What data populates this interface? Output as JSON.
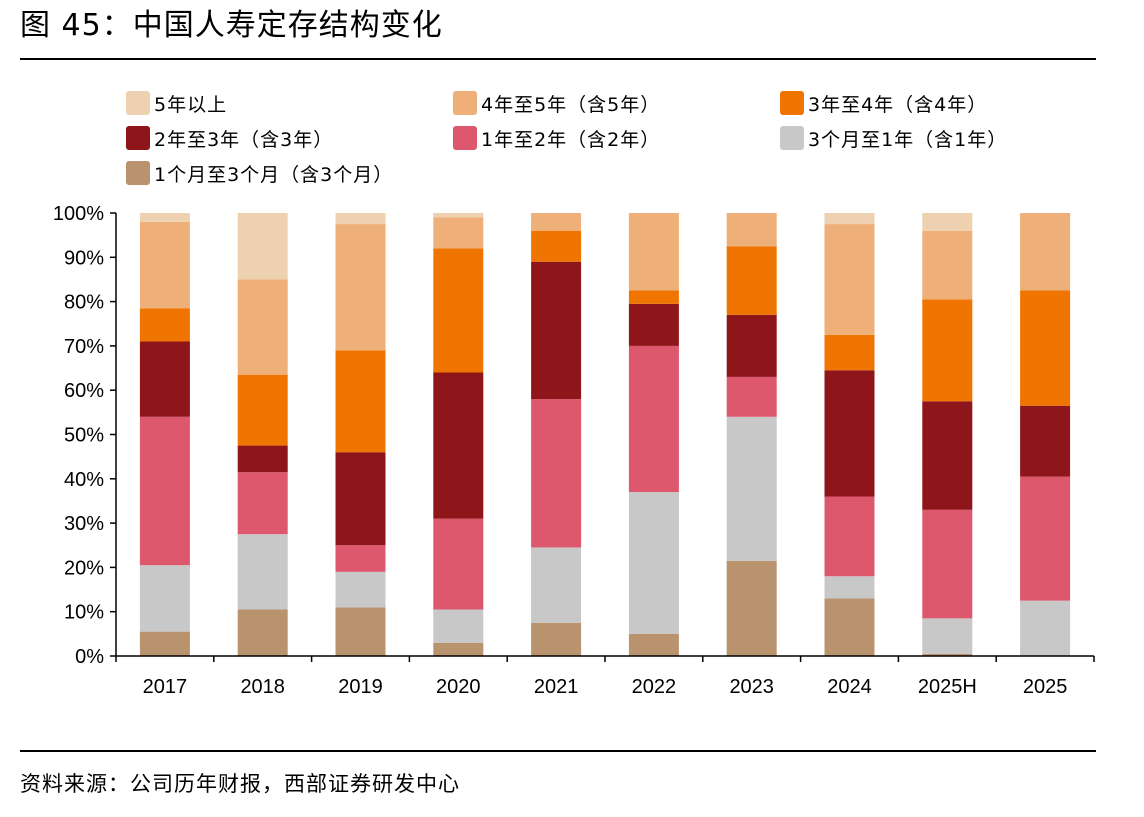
{
  "figure": {
    "title": "图 45：中国人寿定存结构变化",
    "source": "资料来源：公司历年财报，西部证券研发中心"
  },
  "chart_data": {
    "type": "bar",
    "stacked": true,
    "percent": true,
    "categories": [
      "2017",
      "2018",
      "2019",
      "2020",
      "2021",
      "2022",
      "2023",
      "2024",
      "2025H",
      "2025"
    ],
    "ylim": [
      0,
      100
    ],
    "yticks": [
      "0%",
      "10%",
      "20%",
      "30%",
      "40%",
      "50%",
      "60%",
      "70%",
      "80%",
      "90%",
      "100%"
    ],
    "grid": false,
    "legend_position": "top",
    "series": [
      {
        "name": "1个月至3个月（含3个月）",
        "color": "#B9936E",
        "values": [
          5.5,
          10.5,
          11,
          3,
          7.5,
          5,
          21.5,
          13,
          0.5,
          0
        ]
      },
      {
        "name": "3个月至1年（含1年）",
        "color": "#C8C8C8",
        "values": [
          15,
          17,
          8,
          7.5,
          17,
          32,
          32.5,
          5,
          8,
          12.5
        ]
      },
      {
        "name": "1年至2年（含2年）",
        "color": "#DD586D",
        "values": [
          33.5,
          14,
          6,
          20.5,
          33.5,
          33,
          9,
          18,
          24.5,
          28
        ]
      },
      {
        "name": "2年至3年（含3年）",
        "color": "#8E1519",
        "values": [
          17,
          6,
          21,
          33,
          31,
          9.5,
          14,
          28.5,
          24.5,
          16
        ]
      },
      {
        "name": "3年至4年（含4年）",
        "color": "#EF7400",
        "values": [
          7.5,
          16,
          23,
          28,
          7,
          3,
          15.5,
          8,
          23,
          26
        ]
      },
      {
        "name": "4年至5年（含5年）",
        "color": "#EFAF79",
        "values": [
          19.5,
          21.5,
          28.5,
          7,
          4,
          17.5,
          7.5,
          25,
          15.5,
          17.5
        ]
      },
      {
        "name": "5年以上",
        "color": "#EDD1B0",
        "values": [
          2,
          15,
          2.5,
          1,
          0,
          0,
          0,
          2.5,
          4,
          0
        ]
      }
    ]
  },
  "legend": [
    {
      "label": "5年以上",
      "color": "#EDD1B0"
    },
    {
      "label": "4年至5年（含5年）",
      "color": "#EFAF79"
    },
    {
      "label": "3年至4年（含4年）",
      "color": "#EF7400"
    },
    {
      "label": "2年至3年（含3年）",
      "color": "#8E1519"
    },
    {
      "label": "1年至2年（含2年）",
      "color": "#DD586D"
    },
    {
      "label": "3个月至1年（含1年）",
      "color": "#C8C8C8"
    },
    {
      "label": "1个月至3个月（含3个月）",
      "color": "#B9936E"
    }
  ]
}
